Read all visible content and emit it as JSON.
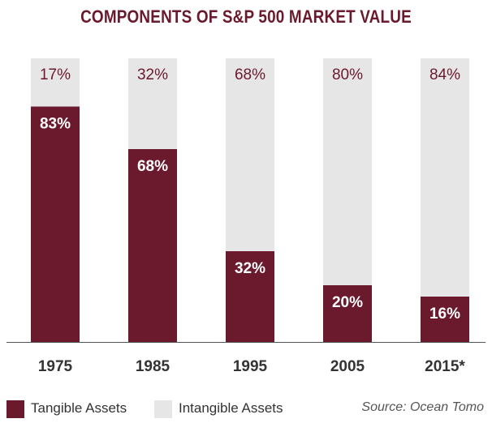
{
  "colors": {
    "tangible": "#6b1a2e",
    "intangible": "#e6e6e6",
    "title": "#6b1a2e",
    "label_on_tangible": "#ffffff",
    "label_on_intangible": "#6b1a2e"
  },
  "chart_data": {
    "type": "bar",
    "stacked": true,
    "title": "COMPONENTS OF S&P 500 MARKET VALUE",
    "categories": [
      "1975",
      "1985",
      "1995",
      "2005",
      "2015*"
    ],
    "series": [
      {
        "name": "Tangible Assets",
        "values": [
          83,
          68,
          32,
          20,
          16
        ],
        "labels": [
          "83%",
          "68%",
          "32%",
          "20%",
          "16%"
        ]
      },
      {
        "name": "Intangible Assets",
        "values": [
          17,
          32,
          68,
          80,
          84
        ],
        "labels": [
          "17%",
          "32%",
          "68%",
          "80%",
          "84%"
        ]
      }
    ],
    "ylim": [
      0,
      100
    ],
    "grid": false,
    "legend": "bottom-left"
  },
  "source": "Source: Ocean Tomo"
}
